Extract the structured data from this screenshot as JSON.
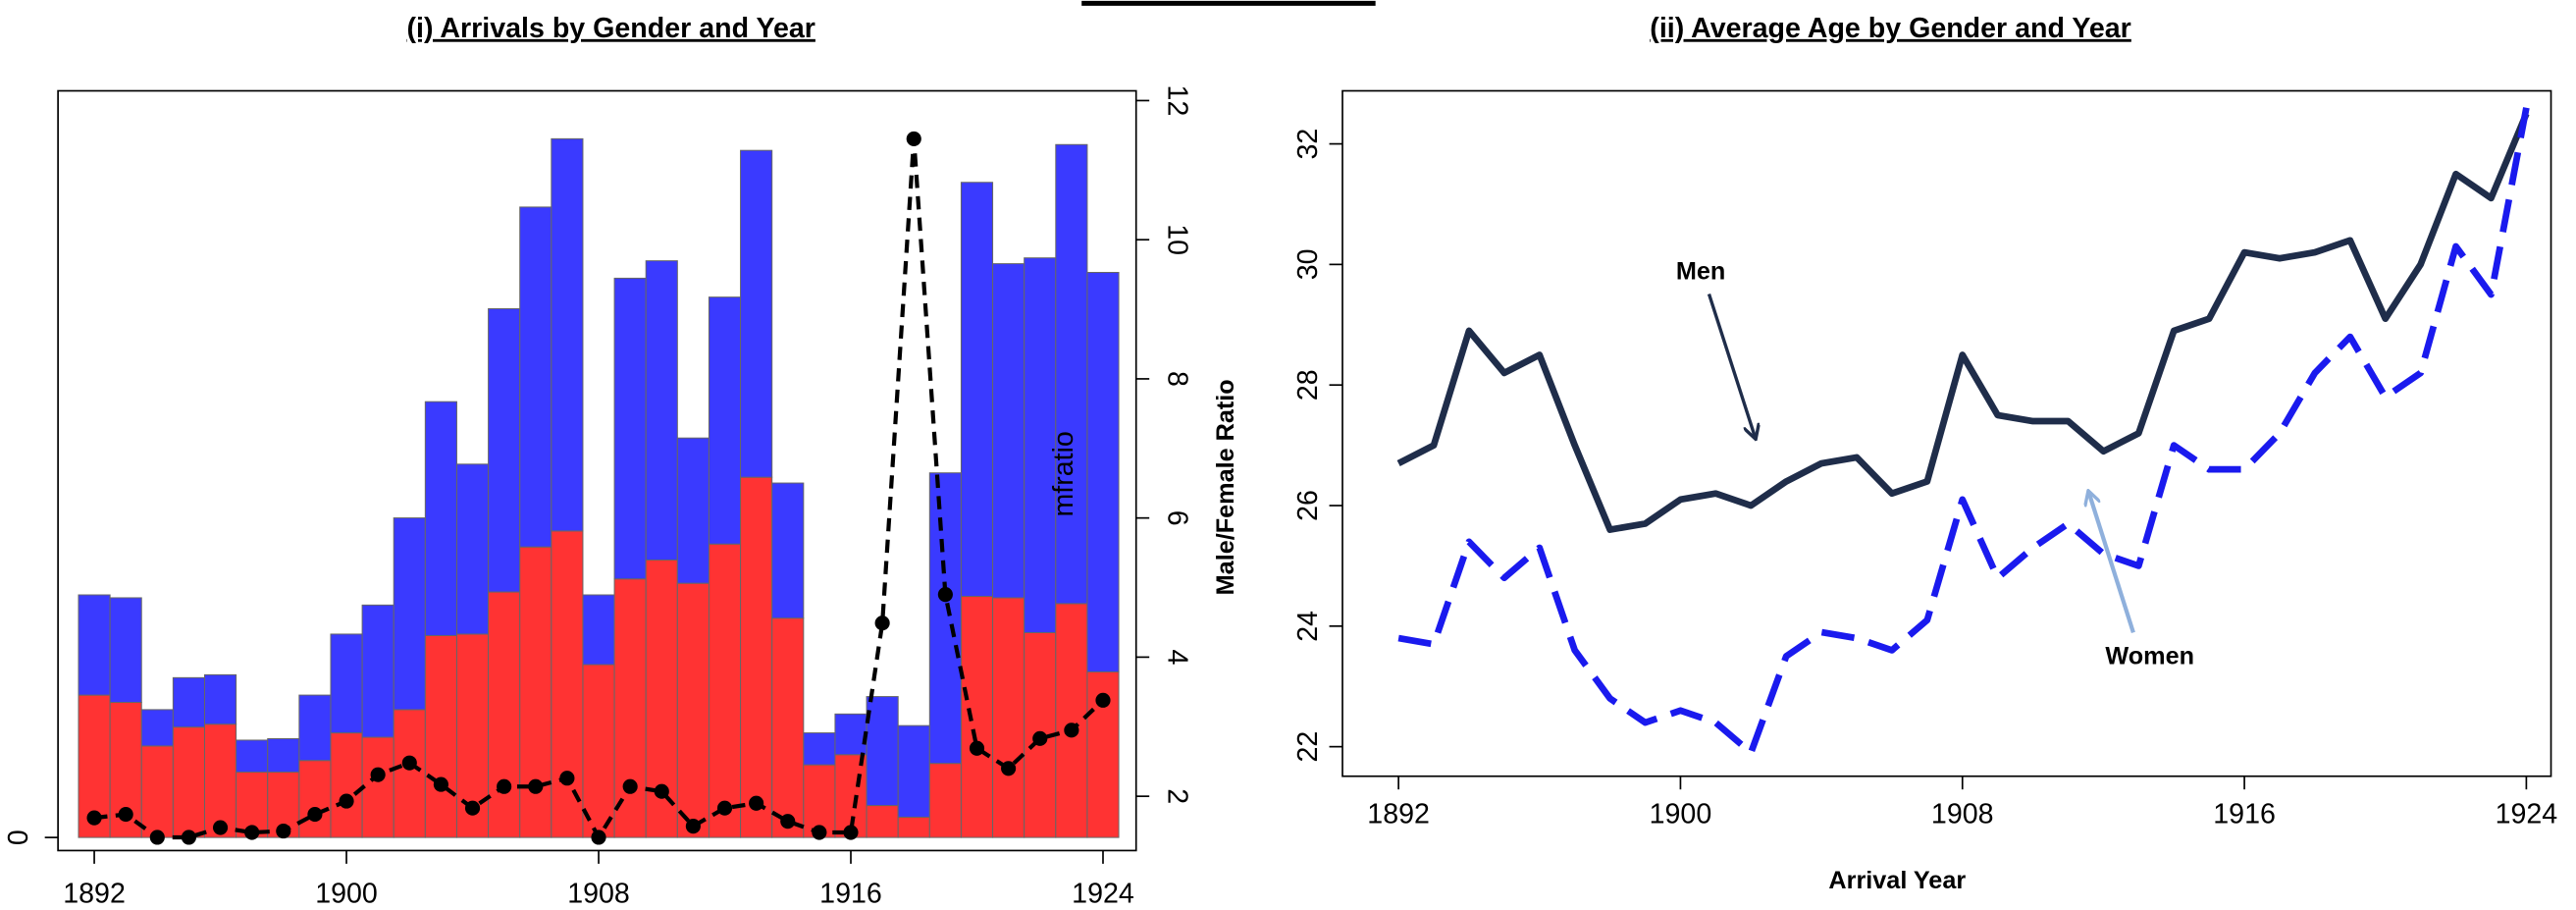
{
  "chart_data": [
    {
      "type": "bar",
      "stacked": true,
      "title": "(i) Arrivals by Gender and Year",
      "y2label": "Male/Female Ratio",
      "annotations": [
        "mfratio"
      ],
      "x": [
        1892,
        1893,
        1894,
        1895,
        1896,
        1897,
        1898,
        1899,
        1900,
        1901,
        1902,
        1903,
        1904,
        1905,
        1906,
        1907,
        1908,
        1909,
        1910,
        1911,
        1912,
        1913,
        1914,
        1915,
        1916,
        1917,
        1918,
        1919,
        1920,
        1921,
        1922,
        1923,
        1924
      ],
      "xlim": [
        1890.85,
        1925.05
      ],
      "xticks": [
        1892,
        1900,
        1908,
        1916,
        1924
      ],
      "ylim": [
        -0.09,
        5.14
      ],
      "yticks": [
        0
      ],
      "y2lim": [
        1.22,
        12.14
      ],
      "y2ticks": [
        2,
        4,
        6,
        8,
        10,
        12
      ],
      "series": [
        {
          "color": "#ff3333",
          "values": [
            0.98,
            0.93,
            0.63,
            0.76,
            0.78,
            0.45,
            0.45,
            0.53,
            0.72,
            0.69,
            0.88,
            1.39,
            1.4,
            1.69,
            2.0,
            2.11,
            1.19,
            1.78,
            1.91,
            1.75,
            2.02,
            2.48,
            1.51,
            0.5,
            0.57,
            0.22,
            0.14,
            0.51,
            1.66,
            1.65,
            1.41,
            1.61,
            1.14
          ]
        },
        {
          "color": "#3a3aff",
          "values": [
            0.69,
            0.72,
            0.25,
            0.34,
            0.34,
            0.22,
            0.23,
            0.45,
            0.68,
            0.91,
            1.32,
            1.61,
            1.17,
            1.95,
            2.34,
            2.7,
            0.48,
            2.07,
            2.06,
            1.0,
            1.7,
            2.25,
            0.93,
            0.22,
            0.28,
            0.75,
            0.63,
            2.0,
            2.85,
            2.3,
            2.58,
            3.16,
            2.75
          ]
        },
        {
          "type": "line",
          "axis": "y2",
          "color": "#000000",
          "dashed": true,
          "values": [
            1.69,
            1.74,
            1.41,
            1.41,
            1.55,
            1.48,
            1.5,
            1.74,
            1.93,
            2.31,
            2.48,
            2.17,
            1.83,
            2.14,
            2.14,
            2.26,
            1.41,
            2.14,
            2.07,
            1.57,
            1.83,
            1.9,
            1.64,
            1.48,
            1.48,
            4.49,
            11.45,
            4.9,
            2.69,
            2.4,
            2.83,
            2.95,
            3.38
          ]
        }
      ]
    },
    {
      "type": "line",
      "title": "(ii) Average Age by Gender and Year",
      "xlabel": "Arrival Year",
      "x": [
        1892,
        1893,
        1894,
        1895,
        1896,
        1897,
        1898,
        1899,
        1900,
        1901,
        1902,
        1903,
        1904,
        1905,
        1906,
        1907,
        1908,
        1909,
        1910,
        1911,
        1912,
        1913,
        1914,
        1915,
        1916,
        1917,
        1918,
        1919,
        1920,
        1921,
        1922,
        1923,
        1924
      ],
      "xlim": [
        1890.41,
        1924.7
      ],
      "xticks": [
        1892,
        1900,
        1908,
        1916,
        1924
      ],
      "ylim": [
        21.51,
        32.88
      ],
      "yticks": [
        22,
        24,
        26,
        28,
        30,
        32
      ],
      "series": [
        {
          "name": "Men",
          "color": "#1f2d4a",
          "dashed": false,
          "values": [
            26.7,
            27.0,
            28.9,
            28.2,
            28.5,
            27.0,
            25.6,
            25.7,
            26.1,
            26.2,
            26.0,
            26.4,
            26.7,
            26.8,
            26.2,
            26.4,
            28.5,
            27.5,
            27.4,
            27.4,
            26.9,
            27.2,
            28.9,
            29.1,
            30.2,
            30.1,
            30.2,
            30.4,
            29.1,
            30.0,
            31.5,
            31.1,
            32.5
          ]
        },
        {
          "name": "Women",
          "color": "#1a1aee",
          "dashed": true,
          "values": [
            23.8,
            23.7,
            25.4,
            24.8,
            25.3,
            23.6,
            22.8,
            22.4,
            22.6,
            22.4,
            21.9,
            23.5,
            23.9,
            23.8,
            23.6,
            24.1,
            26.1,
            24.8,
            25.3,
            25.7,
            25.2,
            25.0,
            27.0,
            26.6,
            26.6,
            27.2,
            28.2,
            28.8,
            27.8,
            28.2,
            30.3,
            29.5,
            32.6
          ]
        }
      ]
    }
  ]
}
